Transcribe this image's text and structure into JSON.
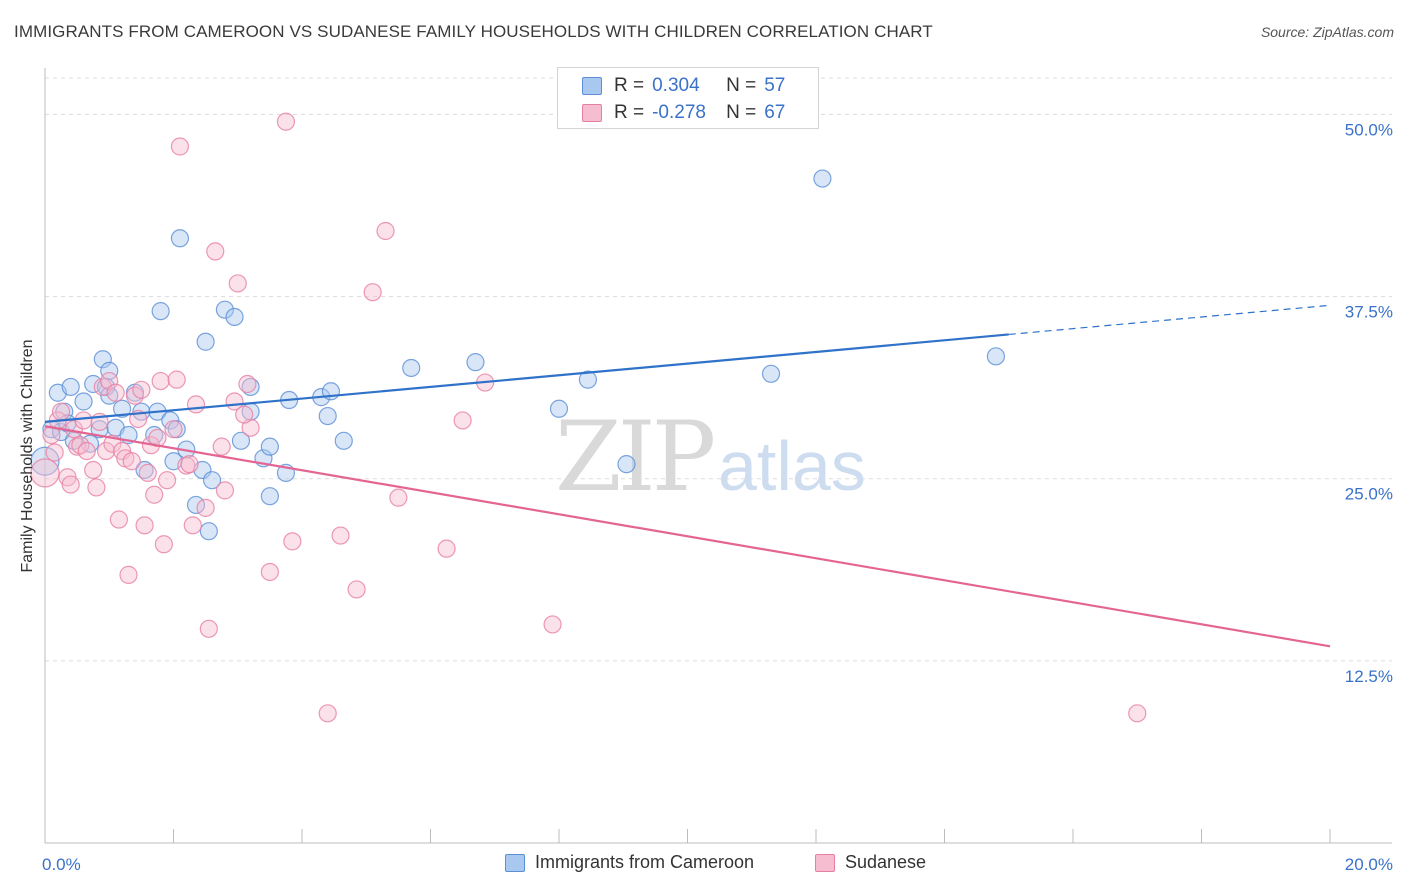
{
  "title": "IMMIGRANTS FROM CAMEROON VS SUDANESE FAMILY HOUSEHOLDS WITH CHILDREN CORRELATION CHART",
  "source": "Source: ZipAtlas.com",
  "colors": {
    "blue_fill": "#a9c8ef",
    "blue_stroke": "#5b8fd6",
    "blue_line": "#2f72c9",
    "pink_fill": "#f6bcd0",
    "pink_stroke": "#e77fa2",
    "pink_line": "#e46592",
    "tick_text": "#3a72c8",
    "grid": "#dcdcdc"
  },
  "legend": {
    "rows": [
      {
        "r_label": "R =",
        "r_value": "0.304",
        "n_label": "N =",
        "n_value": "57",
        "series": "blue"
      },
      {
        "r_label": "R =",
        "r_value": "-0.278",
        "n_label": "N =",
        "n_value": "67",
        "series": "pink"
      }
    ]
  },
  "bottom_legend": [
    "Immigrants from Cameroon",
    "Sudanese"
  ],
  "chart_data": {
    "type": "scatter",
    "ylabel": "Family Households with Children",
    "xlim": [
      0,
      20
    ],
    "ylim": [
      0,
      52.5
    ],
    "x_ticks": [
      "0.0%",
      "20.0%"
    ],
    "y_ticks": [
      "12.5%",
      "25.0%",
      "37.5%",
      "50.0%"
    ],
    "y_tick_values": [
      12.5,
      25.0,
      37.5,
      50.0
    ],
    "grid": "horizontal dashed",
    "watermark": "ZIPatlas",
    "series": [
      {
        "name": "Immigrants from Cameroon",
        "color": "blue",
        "points": [
          [
            0.0,
            26.2
          ],
          [
            0.1,
            28.4
          ],
          [
            0.2,
            30.9
          ],
          [
            0.25,
            28.2
          ],
          [
            0.3,
            29.6
          ],
          [
            0.4,
            31.3
          ],
          [
            0.45,
            27.6
          ],
          [
            0.6,
            30.3
          ],
          [
            0.7,
            27.4
          ],
          [
            0.75,
            31.5
          ],
          [
            0.85,
            28.4
          ],
          [
            0.9,
            33.2
          ],
          [
            0.95,
            31.3
          ],
          [
            1.0,
            32.4
          ],
          [
            1.1,
            28.5
          ],
          [
            1.2,
            29.8
          ],
          [
            1.3,
            28.0
          ],
          [
            1.4,
            30.9
          ],
          [
            1.5,
            29.6
          ],
          [
            1.55,
            25.6
          ],
          [
            1.7,
            28.0
          ],
          [
            1.75,
            29.6
          ],
          [
            1.8,
            36.5
          ],
          [
            1.95,
            29.0
          ],
          [
            2.0,
            26.2
          ],
          [
            2.05,
            28.4
          ],
          [
            2.1,
            41.5
          ],
          [
            2.2,
            27.0
          ],
          [
            2.35,
            23.2
          ],
          [
            2.45,
            25.6
          ],
          [
            2.5,
            34.4
          ],
          [
            2.55,
            21.4
          ],
          [
            2.6,
            24.9
          ],
          [
            2.8,
            36.6
          ],
          [
            2.95,
            36.1
          ],
          [
            3.05,
            27.6
          ],
          [
            3.2,
            29.6
          ],
          [
            3.2,
            31.3
          ],
          [
            3.4,
            26.4
          ],
          [
            3.5,
            27.2
          ],
          [
            3.5,
            23.8
          ],
          [
            3.75,
            25.4
          ],
          [
            3.8,
            30.4
          ],
          [
            4.3,
            30.6
          ],
          [
            4.4,
            29.3
          ],
          [
            4.45,
            31.0
          ],
          [
            4.65,
            27.6
          ],
          [
            5.7,
            32.6
          ],
          [
            6.7,
            33.0
          ],
          [
            8.0,
            29.8
          ],
          [
            8.45,
            31.8
          ],
          [
            9.05,
            26.0
          ],
          [
            11.3,
            32.2
          ],
          [
            12.1,
            45.6
          ],
          [
            14.8,
            33.4
          ],
          [
            0.35,
            28.8
          ],
          [
            1.0,
            30.7
          ]
        ]
      },
      {
        "name": "Sudanese",
        "color": "pink",
        "points": [
          [
            0.0,
            25.4
          ],
          [
            0.1,
            28.0
          ],
          [
            0.2,
            29.0
          ],
          [
            0.25,
            29.6
          ],
          [
            0.35,
            25.1
          ],
          [
            0.4,
            24.6
          ],
          [
            0.45,
            28.4
          ],
          [
            0.5,
            27.2
          ],
          [
            0.55,
            27.3
          ],
          [
            0.6,
            29.0
          ],
          [
            0.75,
            25.6
          ],
          [
            0.8,
            24.4
          ],
          [
            0.85,
            28.9
          ],
          [
            0.9,
            31.3
          ],
          [
            0.95,
            26.9
          ],
          [
            1.0,
            31.7
          ],
          [
            1.05,
            27.4
          ],
          [
            1.1,
            30.9
          ],
          [
            1.15,
            22.2
          ],
          [
            1.2,
            26.9
          ],
          [
            1.25,
            26.4
          ],
          [
            1.3,
            18.4
          ],
          [
            1.35,
            26.2
          ],
          [
            1.4,
            30.7
          ],
          [
            1.5,
            31.1
          ],
          [
            1.55,
            21.8
          ],
          [
            1.6,
            25.4
          ],
          [
            1.65,
            27.3
          ],
          [
            1.7,
            23.9
          ],
          [
            1.8,
            31.7
          ],
          [
            1.85,
            20.5
          ],
          [
            1.9,
            24.9
          ],
          [
            2.0,
            28.4
          ],
          [
            2.05,
            31.8
          ],
          [
            2.1,
            47.8
          ],
          [
            2.2,
            25.9
          ],
          [
            2.3,
            21.8
          ],
          [
            2.35,
            30.1
          ],
          [
            2.5,
            23.0
          ],
          [
            2.55,
            14.7
          ],
          [
            2.65,
            40.6
          ],
          [
            2.75,
            27.2
          ],
          [
            2.8,
            24.2
          ],
          [
            2.95,
            30.3
          ],
          [
            3.0,
            38.4
          ],
          [
            3.15,
            31.5
          ],
          [
            3.2,
            28.5
          ],
          [
            3.5,
            18.6
          ],
          [
            3.75,
            49.5
          ],
          [
            3.85,
            20.7
          ],
          [
            4.4,
            8.9
          ],
          [
            4.6,
            21.1
          ],
          [
            4.85,
            17.4
          ],
          [
            5.1,
            37.8
          ],
          [
            5.3,
            42.0
          ],
          [
            5.5,
            23.7
          ],
          [
            6.25,
            20.2
          ],
          [
            6.5,
            29.0
          ],
          [
            6.85,
            31.6
          ],
          [
            7.9,
            15.0
          ],
          [
            17.0,
            8.9
          ],
          [
            0.15,
            26.8
          ],
          [
            0.65,
            26.9
          ],
          [
            1.45,
            29.1
          ],
          [
            2.25,
            26.0
          ],
          [
            1.75,
            27.8
          ],
          [
            3.1,
            29.4
          ]
        ]
      }
    ],
    "trend_lines": [
      {
        "series": "Immigrants from Cameroon",
        "x_start": 0.0,
        "y_start": 28.9,
        "x_solid_end": 15.0,
        "y_solid_end": 34.9,
        "x_end": 20.0,
        "y_end": 36.9
      },
      {
        "series": "Sudanese",
        "x_start": 0.0,
        "y_start": 28.6,
        "x_end": 20.0,
        "y_end": 13.5
      }
    ]
  }
}
